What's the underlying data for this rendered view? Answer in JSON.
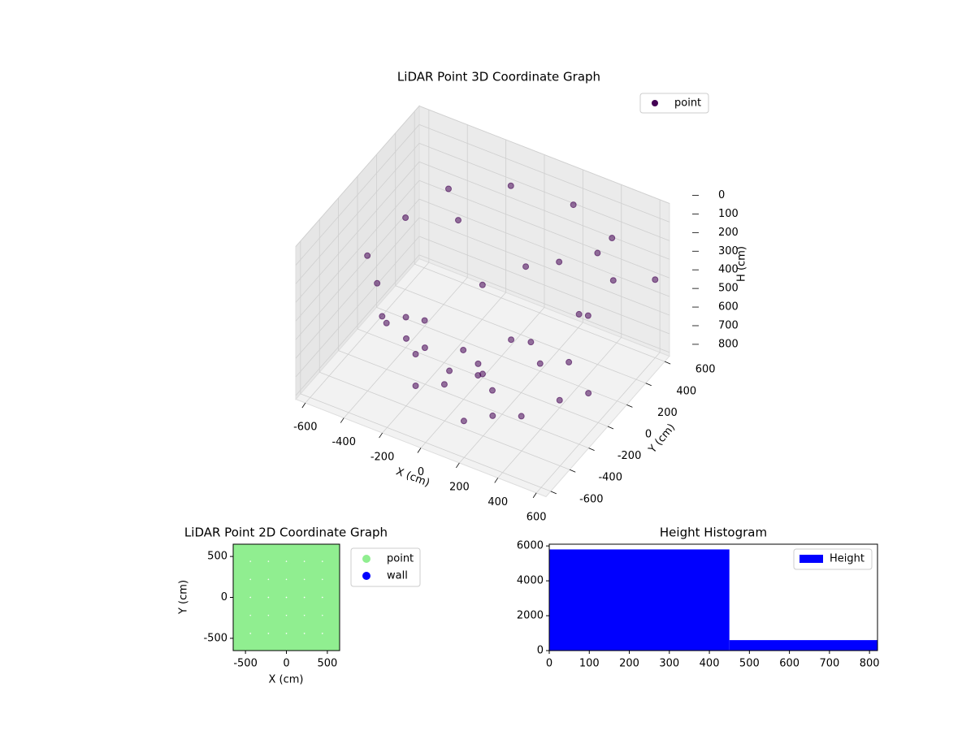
{
  "chart_data": [
    {
      "type": "scatter3d",
      "title": "LiDAR Point 3D Coordinate Graph",
      "x_label": "X (cm)",
      "y_label": "Y (cm)",
      "z_label": "H (cm)",
      "xlim": [
        -650,
        650
      ],
      "ylim": [
        -650,
        650
      ],
      "zlim": [
        0,
        820
      ],
      "z_inverted": true,
      "xticks": [
        -600,
        -400,
        -200,
        0,
        200,
        400,
        600
      ],
      "yticks": [
        -600,
        -400,
        -200,
        0,
        200,
        400,
        600
      ],
      "zticks": [
        0,
        100,
        200,
        300,
        400,
        500,
        600,
        700,
        800
      ],
      "grid": true,
      "legend": "upper right",
      "series": [
        {
          "name": "point",
          "color": "#440154",
          "x": [
            -500,
            -450,
            -350,
            -100,
            200,
            450,
            580,
            550,
            -400,
            -300,
            -150,
            -300,
            -200,
            0,
            100,
            -300,
            -150,
            0,
            100,
            200,
            300,
            -200,
            100,
            300,
            400,
            -400,
            0,
            200,
            500,
            -100,
            300,
            400,
            -50,
            200,
            -250,
            350,
            50,
            -450,
            150,
            600
          ],
          "y": [
            -200,
            100,
            350,
            500,
            550,
            450,
            200,
            -100,
            -300,
            -450,
            -500,
            -200,
            -300,
            -350,
            -250,
            0,
            100,
            0,
            -100,
            200,
            300,
            -300,
            -400,
            -200,
            0,
            200,
            300,
            -300,
            100,
            -200,
            -100,
            300,
            100,
            400,
            250,
            500,
            -150,
            -100,
            150,
            600
          ],
          "h": [
            250,
            200,
            150,
            120,
            130,
            150,
            180,
            200,
            300,
            350,
            380,
            500,
            600,
            580,
            560,
            780,
            790,
            800,
            790,
            780,
            790,
            770,
            780,
            790,
            780,
            790,
            790,
            770,
            760,
            780,
            450,
            500,
            400,
            350,
            220,
            300,
            700,
            650,
            250,
            400
          ]
        }
      ]
    },
    {
      "type": "scatter",
      "title": "LiDAR Point 2D Coordinate Graph",
      "x_label": "X (cm)",
      "y_label": "Y (cm)",
      "xlim": [
        -650,
        650
      ],
      "ylim": [
        -650,
        650
      ],
      "xticks": [
        -500,
        0,
        500
      ],
      "yticks": [
        -500,
        0,
        500
      ],
      "legend": "outside upper right",
      "series": [
        {
          "name": "point",
          "color": "#90ee90",
          "x": [
            -550,
            -330,
            -110,
            110,
            330,
            550,
            -550,
            -330,
            -110,
            110,
            330,
            550,
            -550,
            -330,
            -110,
            110,
            330,
            550,
            -550,
            -330,
            -110,
            110,
            330,
            550,
            -550,
            -330,
            -110,
            110,
            330,
            550,
            -550,
            -330,
            -110,
            110,
            330,
            550
          ],
          "y": [
            -550,
            -550,
            -550,
            -550,
            -550,
            -550,
            -330,
            -330,
            -330,
            -330,
            -330,
            -330,
            -110,
            -110,
            -110,
            -110,
            -110,
            -110,
            110,
            110,
            110,
            110,
            110,
            110,
            330,
            330,
            330,
            330,
            330,
            330,
            550,
            550,
            550,
            550,
            550,
            550
          ]
        },
        {
          "name": "wall",
          "color": "#0000ff",
          "x": [],
          "y": []
        }
      ]
    },
    {
      "type": "hist",
      "title": "Height Histogram",
      "bins": [
        0,
        450,
        900
      ],
      "counts": [
        5800,
        600
      ],
      "color": "#0000ff",
      "name": "Height",
      "xlim": [
        0,
        820
      ],
      "ylim": [
        0,
        6100
      ],
      "xticks": [
        0,
        100,
        200,
        300,
        400,
        500,
        600,
        700,
        800
      ],
      "yticks": [
        0,
        2000,
        4000,
        6000
      ],
      "legend": "upper right"
    }
  ]
}
